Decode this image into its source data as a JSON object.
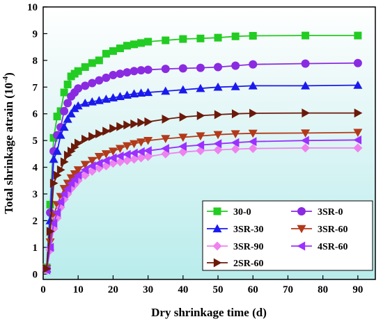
{
  "chart_data": {
    "type": "line",
    "xlabel": "Dry shrinkage time (d)",
    "ylabel_main": "Total shrinkage atrain (10",
    "ylabel_exp": "-4",
    "ylabel_close": ")",
    "xlim": [
      0,
      95
    ],
    "ylim": [
      -0.2,
      10
    ],
    "xticks": [
      0,
      10,
      20,
      30,
      40,
      50,
      60,
      70,
      80,
      90
    ],
    "yticks": [
      0,
      1,
      2,
      3,
      4,
      5,
      6,
      7,
      8,
      9,
      10
    ],
    "xtick_labels": [
      "0",
      "10",
      "20",
      "30",
      "40",
      "50",
      "60",
      "70",
      "80",
      "90"
    ],
    "ytick_labels": [
      "0",
      "1",
      "2",
      "3",
      "4",
      "5",
      "6",
      "7",
      "8",
      "9",
      "10"
    ],
    "legend_position": "bottom-right",
    "series": [
      {
        "name": "30-0",
        "color": "#22cc22",
        "marker": "square",
        "x": [
          1,
          2,
          3,
          4,
          5,
          6,
          7,
          8,
          9,
          10,
          12,
          14,
          16,
          18,
          20,
          22,
          24,
          26,
          28,
          30,
          35,
          40,
          45,
          50,
          55,
          60,
          75,
          90
        ],
        "y": [
          0.25,
          2.6,
          5.1,
          5.9,
          6.1,
          6.8,
          7.1,
          7.4,
          7.5,
          7.6,
          7.75,
          7.9,
          8.0,
          8.25,
          8.35,
          8.45,
          8.55,
          8.6,
          8.65,
          8.7,
          8.75,
          8.8,
          8.82,
          8.85,
          8.9,
          8.92,
          8.93,
          8.93
        ]
      },
      {
        "name": "3SR-0",
        "color": "#8a2be2",
        "marker": "circle",
        "x": [
          1,
          2,
          3,
          4,
          5,
          6,
          7,
          8,
          9,
          10,
          12,
          14,
          16,
          18,
          20,
          22,
          24,
          26,
          28,
          30,
          35,
          40,
          45,
          50,
          55,
          60,
          75,
          90
        ],
        "y": [
          0.2,
          2.3,
          4.6,
          5.2,
          5.5,
          6.1,
          6.4,
          6.65,
          6.8,
          6.95,
          7.05,
          7.15,
          7.25,
          7.35,
          7.45,
          7.5,
          7.55,
          7.6,
          7.63,
          7.65,
          7.68,
          7.7,
          7.72,
          7.75,
          7.8,
          7.85,
          7.88,
          7.9
        ]
      },
      {
        "name": "3SR-30",
        "color": "#1a1aee",
        "marker": "triangle-up",
        "x": [
          1,
          2,
          3,
          4,
          5,
          6,
          7,
          8,
          9,
          10,
          12,
          14,
          16,
          18,
          20,
          22,
          24,
          26,
          28,
          30,
          35,
          40,
          45,
          50,
          55,
          60,
          75,
          90
        ],
        "y": [
          0.2,
          2.0,
          4.3,
          4.6,
          5.2,
          5.5,
          5.8,
          6.0,
          6.2,
          6.3,
          6.4,
          6.45,
          6.5,
          6.55,
          6.6,
          6.65,
          6.7,
          6.75,
          6.78,
          6.8,
          6.85,
          6.9,
          6.95,
          7.0,
          7.02,
          7.05,
          7.05,
          7.07
        ]
      },
      {
        "name": "3SR-60",
        "color": "#b23a1a",
        "marker": "triangle-down",
        "x": [
          1,
          2,
          3,
          4,
          5,
          6,
          7,
          8,
          9,
          10,
          12,
          14,
          16,
          18,
          20,
          22,
          24,
          26,
          28,
          30,
          35,
          40,
          45,
          50,
          55,
          60,
          75,
          90
        ],
        "y": [
          0.2,
          1.2,
          2.2,
          2.6,
          2.9,
          3.2,
          3.4,
          3.6,
          3.75,
          3.9,
          4.1,
          4.25,
          4.4,
          4.5,
          4.6,
          4.7,
          4.8,
          4.88,
          4.94,
          5.0,
          5.07,
          5.12,
          5.17,
          5.22,
          5.25,
          5.27,
          5.28,
          5.3
        ]
      },
      {
        "name": "3SR-90",
        "color": "#ee82ee",
        "marker": "diamond",
        "x": [
          1,
          2,
          3,
          4,
          5,
          6,
          7,
          8,
          9,
          10,
          12,
          14,
          16,
          18,
          20,
          22,
          24,
          26,
          28,
          30,
          35,
          40,
          45,
          50,
          55,
          60,
          75,
          90
        ],
        "y": [
          0.15,
          0.9,
          1.7,
          2.1,
          2.5,
          2.8,
          3.0,
          3.2,
          3.35,
          3.5,
          3.7,
          3.85,
          3.97,
          4.05,
          4.15,
          4.2,
          4.25,
          4.3,
          4.35,
          4.4,
          4.5,
          4.57,
          4.62,
          4.65,
          4.68,
          4.7,
          4.72,
          4.72
        ]
      },
      {
        "name": "4SR-60",
        "color": "#9b30ff",
        "marker": "triangle-left",
        "x": [
          1,
          2,
          3,
          4,
          5,
          6,
          7,
          8,
          9,
          10,
          12,
          14,
          16,
          18,
          20,
          22,
          24,
          26,
          28,
          30,
          35,
          40,
          45,
          50,
          55,
          60,
          75,
          90
        ],
        "y": [
          0.15,
          1.0,
          1.9,
          2.3,
          2.7,
          3.0,
          3.2,
          3.4,
          3.55,
          3.7,
          3.9,
          4.05,
          4.15,
          4.25,
          4.35,
          4.42,
          4.48,
          4.53,
          4.58,
          4.62,
          4.7,
          4.78,
          4.83,
          4.88,
          4.92,
          4.96,
          5.0,
          5.02
        ]
      },
      {
        "name": "2SR-60",
        "color": "#6b1a0a",
        "marker": "triangle-right",
        "x": [
          1,
          2,
          3,
          4,
          5,
          6,
          7,
          8,
          9,
          10,
          12,
          14,
          16,
          18,
          20,
          22,
          24,
          26,
          28,
          30,
          35,
          40,
          45,
          50,
          55,
          60,
          75,
          90
        ],
        "y": [
          0.2,
          1.6,
          3.4,
          3.7,
          3.9,
          4.2,
          4.45,
          4.6,
          4.75,
          4.9,
          5.05,
          5.15,
          5.25,
          5.35,
          5.45,
          5.52,
          5.58,
          5.62,
          5.67,
          5.7,
          5.8,
          5.88,
          5.93,
          5.97,
          6.0,
          6.02,
          6.03,
          6.03
        ]
      }
    ],
    "legend_order": [
      0,
      1,
      2,
      3,
      4,
      5,
      6
    ]
  }
}
